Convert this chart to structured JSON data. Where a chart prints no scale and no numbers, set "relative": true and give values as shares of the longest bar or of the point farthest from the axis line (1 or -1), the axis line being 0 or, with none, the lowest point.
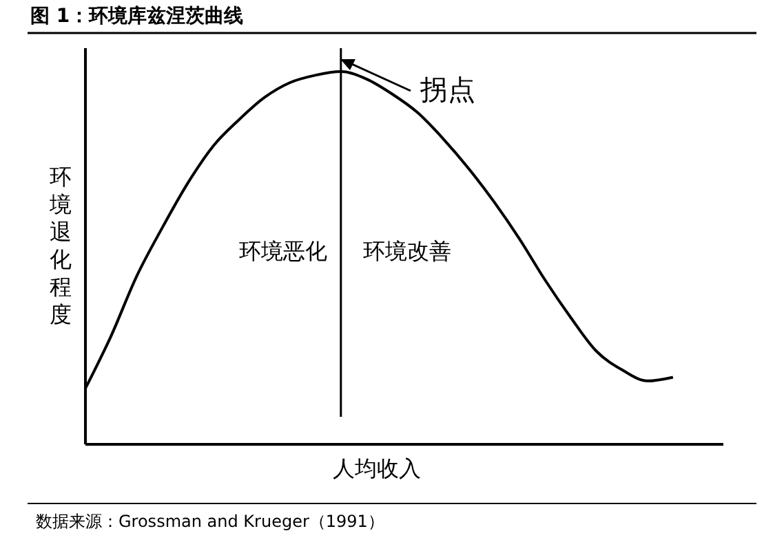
{
  "chart_data": {
    "type": "line",
    "title": "图 1：环境库兹涅茨曲线",
    "xlabel": "人均收入",
    "ylabel": "环境退化程度",
    "relative": true,
    "line_style": "solid",
    "categories": [
      null,
      null,
      null,
      null,
      null,
      null,
      null,
      null,
      null,
      null,
      null,
      null,
      null,
      null,
      null,
      null,
      null,
      null,
      null,
      null,
      null,
      null,
      null,
      null
    ],
    "series": [
      {
        "color": "#000000",
        "values": [
          0.15,
          0.29,
          0.45,
          0.58,
          0.7,
          0.8,
          0.87,
          0.93,
          0.97,
          0.99,
          1,
          0.98,
          0.94,
          0.89,
          0.82,
          0.74,
          0.65,
          0.55,
          0.44,
          0.34,
          0.25,
          0.2,
          0.17,
          0.18
        ]
      }
    ],
    "annotations": [
      "环境恶化",
      "环境改善",
      "拐点",
      "数据来源：Grossman and Krueger（1991）"
    ]
  }
}
